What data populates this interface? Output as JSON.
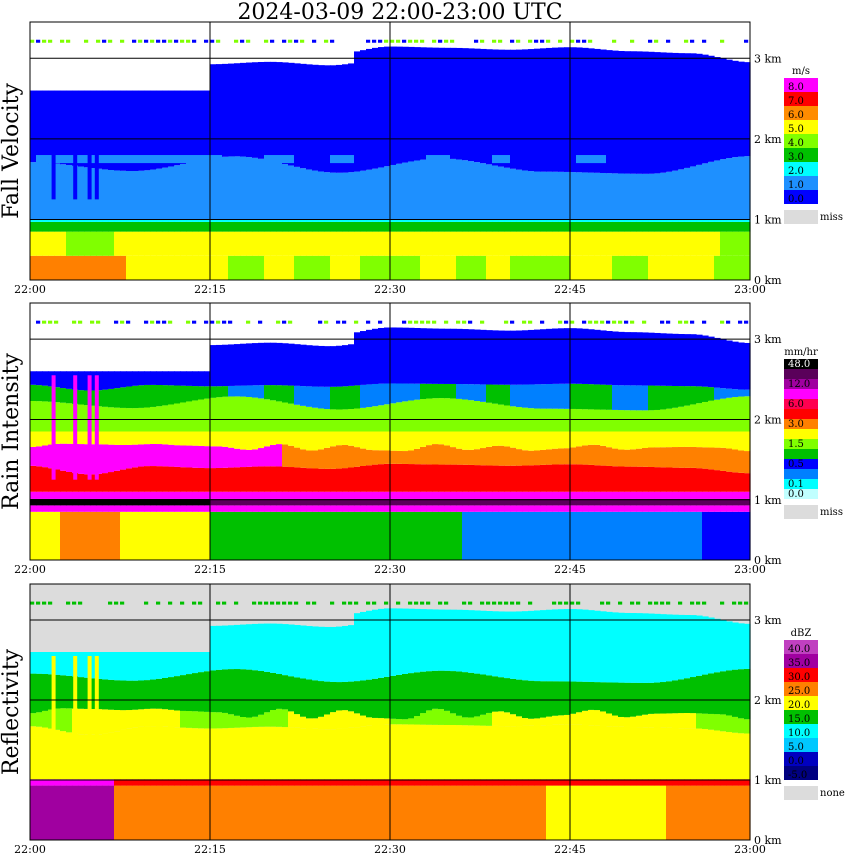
{
  "title": "2024-03-09   22:00-23:00 UTC",
  "chart_data": [
    {
      "type": "heatmap",
      "ylabel": "Fall Velocity",
      "x_ticks": [
        "22:00",
        "22:15",
        "22:30",
        "22:45",
        "23:00"
      ],
      "y_ticks": [
        "0 km",
        "1 km",
        "2 km",
        "3 km"
      ],
      "xlim": [
        "22:00",
        "23:00"
      ],
      "ylim_km": [
        0,
        3.2
      ],
      "grid": true,
      "legend": {
        "placement": "right",
        "unit": "m/s",
        "labels": [
          "8.0",
          "7.0",
          "6.0",
          "5.0",
          "4.0",
          "3.0",
          "2.0",
          "1.0",
          "0.0"
        ],
        "colors": [
          "#ff00ff",
          "#ff0000",
          "#ff8c00",
          "#ffff00",
          "#80ff00",
          "#00c000",
          "#00ffff",
          "#1e90ff",
          "#0000ff"
        ],
        "miss_label": "miss",
        "miss_color": "#dcdcdc"
      }
    },
    {
      "type": "heatmap",
      "ylabel": "Rain Intensity",
      "x_ticks": [
        "22:00",
        "22:15",
        "22:30",
        "22:45",
        "23:00"
      ],
      "y_ticks": [
        "0 km",
        "1 km",
        "2 km",
        "3 km"
      ],
      "xlim": [
        "22:00",
        "23:00"
      ],
      "ylim_km": [
        0,
        3.2
      ],
      "grid": true,
      "legend": {
        "placement": "right",
        "unit": "mm/hr",
        "labels": [
          "48.0",
          "",
          "12.0",
          "",
          "6.0",
          "",
          "3.0",
          "",
          "1.5",
          "",
          "0.5",
          "",
          "0.1",
          "0.0"
        ],
        "colors": [
          "#000000",
          "#5a005a",
          "#a000a0",
          "#ff00ff",
          "#ff0050",
          "#ff0000",
          "#ff8000",
          "#ffff00",
          "#80ff00",
          "#00c000",
          "#0000ff",
          "#0080ff",
          "#00ffff",
          "#c0ffff"
        ],
        "miss_label": "miss",
        "miss_color": "#dcdcdc"
      }
    },
    {
      "type": "heatmap",
      "ylabel": "Reflectivity",
      "x_ticks": [
        "22:00",
        "22:15",
        "22:30",
        "22:45",
        "23:00"
      ],
      "y_ticks": [
        "0 km",
        "1 km",
        "2 km",
        "3 km"
      ],
      "xlim": [
        "22:00",
        "23:00"
      ],
      "ylim_km": [
        0,
        3.2
      ],
      "grid": true,
      "legend": {
        "placement": "right",
        "unit": "dBZ",
        "labels": [
          "40.0",
          "35.0",
          "30.0",
          "25.0",
          "20.0",
          "15.0",
          "10.0",
          "5.0",
          "0.0",
          "-5.0"
        ],
        "colors": [
          "#c040c0",
          "#a000a0",
          "#ff0000",
          "#ff8000",
          "#ffff00",
          "#00c000",
          "#00ffff",
          "#00c8ff",
          "#0000c0",
          "#000080"
        ],
        "miss_label": "none",
        "miss_color": "#dcdcdc"
      }
    }
  ]
}
